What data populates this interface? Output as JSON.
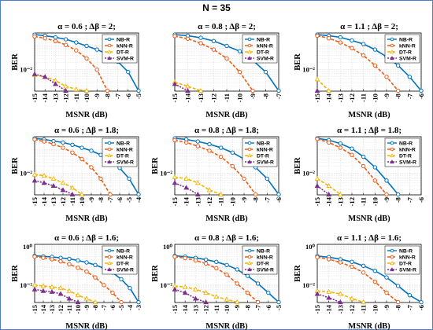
{
  "figure": {
    "title": "N = 35"
  },
  "legend_labels": [
    "NB-R",
    "kNN-R",
    "DT-R",
    "SVM-R"
  ],
  "colors": {
    "NB-R": "#0072BD",
    "kNN-R": "#EE5A14",
    "DT-R": "#F4B400",
    "SVM-R": "#7E2F8E",
    "frame": "#4a7bd6",
    "grid": "#d9d9d9"
  },
  "markers": {
    "NB-R": "circle",
    "kNN-R": "circle-open",
    "DT-R": "triangle",
    "SVM-R": "triangle"
  },
  "chart_data": [
    {
      "type": "line",
      "title": "α = 0.6 ; Δβ = 2;",
      "xlabel": "MSNR (dB)",
      "ylabel": "BER",
      "yscale": "log",
      "ylim": [
        0.00125,
        0.35
      ],
      "xlim": [
        -15,
        -5
      ],
      "xticks": [
        "-15",
        "-14",
        "-13",
        "-12",
        "-11",
        "-10",
        "-9",
        "-8",
        "-7",
        "-6",
        "-5"
      ],
      "yticks": [
        {
          "value": 0.01,
          "label": "10⁻²"
        }
      ],
      "grid": true,
      "legend": "top-right",
      "series": [
        {
          "name": "NB-R",
          "x": [
            -15,
            -14,
            -13,
            -12,
            -11,
            -10,
            -9,
            -8,
            -7,
            -6,
            -5
          ],
          "y": [
            0.3,
            0.27,
            0.23,
            0.19,
            0.14,
            0.1,
            0.07,
            0.045,
            0.022,
            0.008,
            0.0013
          ]
        },
        {
          "name": "kNN-R",
          "x": [
            -15,
            -14,
            -13,
            -12,
            -11,
            -10,
            -9,
            -8
          ],
          "y": [
            0.25,
            0.21,
            0.16,
            0.11,
            0.065,
            0.03,
            0.01,
            0.0013
          ]
        },
        {
          "name": "DT-R",
          "x": [
            -15,
            -14,
            -13,
            -12,
            -11,
            -10
          ],
          "y": [
            0.006,
            0.005,
            0.0035,
            0.002,
            0.0015,
            0.0013
          ]
        },
        {
          "name": "SVM-R",
          "x": [
            -15,
            -14,
            -13,
            -12
          ],
          "y": [
            0.0065,
            0.005,
            0.0025,
            0.0013
          ]
        }
      ]
    },
    {
      "type": "line",
      "title": "α = 0.8 ; Δβ = 2;",
      "xlabel": "MSNR (dB)",
      "ylabel": "",
      "yscale": "log",
      "ylim": [
        0.00125,
        0.35
      ],
      "xlim": [
        -15,
        -7
      ],
      "xticks": [
        "-15",
        "-14",
        "-13",
        "-12",
        "-11",
        "-10",
        "-9",
        "-8",
        "-7"
      ],
      "yticks": [],
      "grid": true,
      "legend": "top-right",
      "series": [
        {
          "name": "NB-R",
          "x": [
            -15,
            -14,
            -13,
            -12,
            -11,
            -10,
            -9,
            -8,
            -7
          ],
          "y": [
            0.3,
            0.27,
            0.22,
            0.16,
            0.1,
            0.06,
            0.025,
            0.008,
            0.0013
          ]
        },
        {
          "name": "kNN-R",
          "x": [
            -15,
            -14,
            -13,
            -12,
            -11,
            -10,
            -9
          ],
          "y": [
            0.26,
            0.2,
            0.13,
            0.07,
            0.03,
            0.008,
            0.0013
          ]
        },
        {
          "name": "DT-R",
          "x": [
            -15,
            -14,
            -13
          ],
          "y": [
            0.003,
            0.002,
            0.0013
          ]
        },
        {
          "name": "SVM-R",
          "x": [
            -15,
            -14
          ],
          "y": [
            0.0025,
            0.0013
          ]
        }
      ]
    },
    {
      "type": "line",
      "title": "α = 1.1 ; Δβ = 2;",
      "xlabel": "MSNR (dB)",
      "ylabel": "BER",
      "yscale": "log",
      "ylim": [
        0.00125,
        0.35
      ],
      "xlim": [
        -15,
        -6
      ],
      "xticks": [
        "-15",
        "-14",
        "-13",
        "-12",
        "-11",
        "-10",
        "-9",
        "-8",
        "-7",
        "-6"
      ],
      "yticks": [
        {
          "value": 0.01,
          "label": "10⁻²"
        }
      ],
      "grid": true,
      "legend": "top-right",
      "series": [
        {
          "name": "NB-R",
          "x": [
            -15,
            -14,
            -13,
            -12,
            -11,
            -10,
            -9,
            -8,
            -7,
            -6
          ],
          "y": [
            0.3,
            0.27,
            0.23,
            0.17,
            0.12,
            0.07,
            0.035,
            0.015,
            0.005,
            0.0013
          ]
        },
        {
          "name": "kNN-R",
          "x": [
            -15,
            -14,
            -13,
            -12,
            -11,
            -10,
            -9,
            -8
          ],
          "y": [
            0.27,
            0.21,
            0.14,
            0.08,
            0.04,
            0.015,
            0.005,
            0.0013
          ]
        },
        {
          "name": "DT-R",
          "x": [
            -15,
            -14
          ],
          "y": [
            0.004,
            0.0013
          ]
        },
        {
          "name": "SVM-R",
          "x": [
            -15
          ],
          "y": [
            0.0013
          ]
        }
      ]
    },
    {
      "type": "line",
      "title": "α = 0.6 ; Δβ = 1.8;",
      "xlabel": "MSNR (dB)",
      "ylabel": "BER",
      "yscale": "log",
      "ylim": [
        0.00125,
        0.35
      ],
      "xlim": [
        -15,
        -4
      ],
      "xticks": [
        "-15",
        "-14",
        "-13",
        "-12",
        "-11",
        "-10",
        "-9",
        "-8",
        "-7",
        "-6",
        "-5",
        "-4"
      ],
      "yticks": [
        {
          "value": 0.01,
          "label": "10⁻²"
        }
      ],
      "grid": true,
      "legend": "top-right",
      "series": [
        {
          "name": "NB-R",
          "x": [
            -15,
            -14,
            -13,
            -12,
            -11,
            -10,
            -9,
            -8,
            -7,
            -6,
            -5,
            -4
          ],
          "y": [
            0.3,
            0.27,
            0.23,
            0.2,
            0.16,
            0.12,
            0.09,
            0.06,
            0.035,
            0.017,
            0.006,
            0.0013
          ]
        },
        {
          "name": "kNN-R",
          "x": [
            -15,
            -14,
            -13,
            -12,
            -11,
            -10,
            -9,
            -8,
            -7
          ],
          "y": [
            0.27,
            0.22,
            0.17,
            0.12,
            0.075,
            0.04,
            0.018,
            0.006,
            0.0013
          ]
        },
        {
          "name": "DT-R",
          "x": [
            -15,
            -14,
            -13,
            -12,
            -11,
            -10
          ],
          "y": [
            0.009,
            0.008,
            0.006,
            0.004,
            0.0025,
            0.0013
          ]
        },
        {
          "name": "SVM-R",
          "x": [
            -15,
            -14,
            -13,
            -12,
            -11
          ],
          "y": [
            0.005,
            0.004,
            0.003,
            0.002,
            0.0013
          ]
        }
      ]
    },
    {
      "type": "line",
      "title": "α = 0.8 ; Δβ = 1.8;",
      "xlabel": "MSNR (dB)",
      "ylabel": "BER",
      "yscale": "log",
      "ylim": [
        0.00125,
        0.35
      ],
      "xlim": [
        -15,
        -6
      ],
      "xticks": [
        "-15",
        "-14",
        "-13",
        "-12",
        "-11",
        "-10",
        "-9",
        "-8",
        "-7",
        "-6"
      ],
      "yticks": [
        {
          "value": 0.01,
          "label": "10⁻²"
        }
      ],
      "grid": true,
      "legend": "top-right",
      "series": [
        {
          "name": "NB-R",
          "x": [
            -15,
            -14,
            -13,
            -12,
            -11,
            -10,
            -9,
            -8,
            -7,
            -6
          ],
          "y": [
            0.3,
            0.27,
            0.22,
            0.17,
            0.12,
            0.075,
            0.04,
            0.018,
            0.006,
            0.0013
          ]
        },
        {
          "name": "kNN-R",
          "x": [
            -15,
            -14,
            -13,
            -12,
            -11,
            -10,
            -9,
            -8
          ],
          "y": [
            0.25,
            0.2,
            0.14,
            0.09,
            0.05,
            0.02,
            0.006,
            0.0013
          ]
        },
        {
          "name": "DT-R",
          "x": [
            -15,
            -14,
            -13,
            -12,
            -11
          ],
          "y": [
            0.007,
            0.006,
            0.004,
            0.002,
            0.0013
          ]
        },
        {
          "name": "SVM-R",
          "x": [
            -15,
            -14,
            -13
          ],
          "y": [
            0.004,
            0.0025,
            0.0013
          ]
        }
      ]
    },
    {
      "type": "line",
      "title": "α = 1.1 ; Δβ = 1.8;",
      "xlabel": "MSNR (dB)",
      "ylabel": "BER",
      "yscale": "log",
      "ylim": [
        0.00125,
        0.35
      ],
      "xlim": [
        -15,
        -6
      ],
      "xticks": [
        "-15",
        "-14",
        "-13",
        "-12",
        "-11",
        "-10",
        "-9",
        "-8",
        "-7",
        "-6"
      ],
      "yticks": [
        {
          "value": 0.01,
          "label": "10⁻²"
        }
      ],
      "grid": true,
      "legend": "top-right",
      "series": [
        {
          "name": "NB-R",
          "x": [
            -15,
            -14,
            -13,
            -12,
            -11,
            -10,
            -9,
            -8
          ],
          "y": [
            0.3,
            0.25,
            0.18,
            0.11,
            0.05,
            0.018,
            0.005,
            0.0013
          ]
        },
        {
          "name": "kNN-R",
          "x": [
            -15,
            -14,
            -13,
            -12,
            -11,
            -10,
            -9
          ],
          "y": [
            0.28,
            0.2,
            0.12,
            0.06,
            0.02,
            0.005,
            0.0013
          ]
        },
        {
          "name": "DT-R",
          "x": [
            -15,
            -14,
            -13
          ],
          "y": [
            0.006,
            0.003,
            0.0013
          ]
        },
        {
          "name": "SVM-R",
          "x": [
            -15,
            -14
          ],
          "y": [
            0.003,
            0.0013
          ]
        }
      ]
    },
    {
      "type": "line",
      "title": "α = 0.6 ; Δβ = 1.6;",
      "xlabel": "MSNR (dB)",
      "ylabel": "BER",
      "yscale": "log",
      "ylim": [
        0.00125,
        1.3
      ],
      "xlim": [
        -15,
        -3
      ],
      "xticks": [
        "-15",
        "-14",
        "-13",
        "-12",
        "-11",
        "-10",
        "-9",
        "-8",
        "-7",
        "-6",
        "-5",
        "-4",
        "-3"
      ],
      "yticks": [
        {
          "value": 1,
          "label": "10⁰"
        },
        {
          "value": 0.01,
          "label": "10⁻²"
        }
      ],
      "grid": true,
      "legend": "top-right",
      "series": [
        {
          "name": "NB-R",
          "x": [
            -15,
            -14,
            -13,
            -12,
            -11,
            -10,
            -9,
            -8,
            -7,
            -6,
            -5,
            -4,
            -3
          ],
          "y": [
            0.33,
            0.31,
            0.29,
            0.26,
            0.23,
            0.19,
            0.15,
            0.11,
            0.075,
            0.045,
            0.02,
            0.007,
            0.0013
          ]
        },
        {
          "name": "kNN-R",
          "x": [
            -15,
            -14,
            -13,
            -12,
            -11,
            -10,
            -9,
            -8,
            -7,
            -6,
            -5
          ],
          "y": [
            0.3,
            0.26,
            0.22,
            0.17,
            0.12,
            0.08,
            0.05,
            0.025,
            0.01,
            0.004,
            0.0013
          ]
        },
        {
          "name": "DT-R",
          "x": [
            -15,
            -14,
            -13,
            -12,
            -11,
            -10,
            -9,
            -8
          ],
          "y": [
            0.01,
            0.009,
            0.008,
            0.007,
            0.005,
            0.003,
            0.002,
            0.0013
          ]
        },
        {
          "name": "SVM-R",
          "x": [
            -15,
            -14,
            -13,
            -12,
            -11,
            -10
          ],
          "y": [
            0.006,
            0.005,
            0.0045,
            0.0035,
            0.002,
            0.0013
          ]
        }
      ]
    },
    {
      "type": "line",
      "title": "α = 0.8 ; Δβ = 1.6;",
      "xlabel": "MSNR (dB)",
      "ylabel": "BER",
      "yscale": "log",
      "ylim": [
        0.00125,
        1.3
      ],
      "xlim": [
        -15,
        -5
      ],
      "xticks": [
        "-15",
        "-14",
        "-13",
        "-12",
        "-11",
        "-10",
        "-9",
        "-8",
        "-7",
        "-6",
        "-5"
      ],
      "yticks": [
        {
          "value": 1,
          "label": "10⁰"
        },
        {
          "value": 0.01,
          "label": "10⁻²"
        }
      ],
      "grid": true,
      "legend": "top-right",
      "series": [
        {
          "name": "NB-R",
          "x": [
            -15,
            -14,
            -13,
            -12,
            -11,
            -10,
            -9,
            -8,
            -7,
            -6,
            -5
          ],
          "y": [
            0.33,
            0.3,
            0.26,
            0.21,
            0.16,
            0.11,
            0.065,
            0.03,
            0.012,
            0.004,
            0.0013
          ]
        },
        {
          "name": "kNN-R",
          "x": [
            -15,
            -14,
            -13,
            -12,
            -11,
            -10,
            -9,
            -8,
            -7
          ],
          "y": [
            0.3,
            0.25,
            0.19,
            0.13,
            0.075,
            0.035,
            0.012,
            0.004,
            0.0013
          ]
        },
        {
          "name": "DT-R",
          "x": [
            -15,
            -14,
            -13,
            -12,
            -11,
            -10,
            -9
          ],
          "y": [
            0.009,
            0.008,
            0.006,
            0.004,
            0.0025,
            0.0018,
            0.0013
          ]
        },
        {
          "name": "SVM-R",
          "x": [
            -15,
            -14,
            -13,
            -12
          ],
          "y": [
            0.006,
            0.004,
            0.002,
            0.0013
          ]
        }
      ]
    },
    {
      "type": "line",
      "title": "α = 1.1 ; Δβ = 1.6;",
      "xlabel": "MSNR (dB)",
      "ylabel": "BER",
      "yscale": "log",
      "ylim": [
        0.00125,
        1.3
      ],
      "xlim": [
        -15,
        -6
      ],
      "xticks": [
        "-15",
        "-14",
        "-13",
        "-12",
        "-11",
        "-10",
        "-9",
        "-8",
        "-7",
        "-6"
      ],
      "yticks": [
        {
          "value": 1,
          "label": "10⁰"
        },
        {
          "value": 0.01,
          "label": "10⁻²"
        }
      ],
      "grid": true,
      "legend": "top-right",
      "series": [
        {
          "name": "NB-R",
          "x": [
            -15,
            -14,
            -13,
            -12,
            -11,
            -10,
            -9,
            -8,
            -7,
            -6
          ],
          "y": [
            0.32,
            0.28,
            0.22,
            0.16,
            0.1,
            0.055,
            0.025,
            0.009,
            0.003,
            0.0013
          ]
        },
        {
          "name": "kNN-R",
          "x": [
            -15,
            -14,
            -13,
            -12,
            -11,
            -10,
            -9,
            -8
          ],
          "y": [
            0.28,
            0.22,
            0.15,
            0.09,
            0.045,
            0.015,
            0.004,
            0.0013
          ]
        },
        {
          "name": "DT-R",
          "x": [
            -15,
            -14,
            -13,
            -12,
            -11
          ],
          "y": [
            0.005,
            0.0045,
            0.0035,
            0.002,
            0.0013
          ]
        },
        {
          "name": "SVM-R",
          "x": [
            -15,
            -14,
            -13
          ],
          "y": [
            0.0035,
            0.0022,
            0.0013
          ]
        }
      ]
    }
  ]
}
